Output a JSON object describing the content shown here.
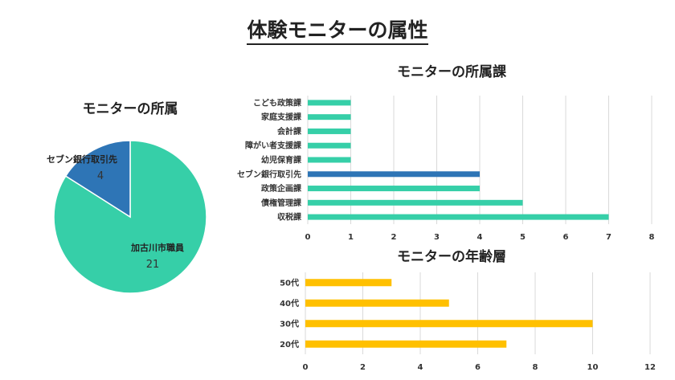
{
  "page": {
    "title": "体験モニターの属性"
  },
  "chart_data": [
    {
      "type": "pie",
      "title": "モニターの所属",
      "slices": [
        {
          "label": "加古川市職員",
          "value": 21,
          "color": "#36cfa8"
        },
        {
          "label": "セブン銀行取引先",
          "value": 4,
          "color": "#2e75b6"
        }
      ]
    },
    {
      "type": "bar",
      "orientation": "horizontal",
      "title": "モニターの所属課",
      "categories": [
        "こども政策課",
        "家庭支援課",
        "会計課",
        "障がい者支援課",
        "幼児保育課",
        "セブン銀行取引先",
        "政策企画課",
        "債権管理課",
        "収税課"
      ],
      "values": [
        1,
        1,
        1,
        1,
        1,
        4,
        4,
        5,
        7
      ],
      "colors": [
        "#36cfa8",
        "#36cfa8",
        "#36cfa8",
        "#36cfa8",
        "#36cfa8",
        "#2e75b6",
        "#36cfa8",
        "#36cfa8",
        "#36cfa8"
      ],
      "xlim": [
        0,
        8
      ],
      "xticks": [
        0,
        1,
        2,
        3,
        4,
        5,
        6,
        7,
        8
      ],
      "grid": true
    },
    {
      "type": "bar",
      "orientation": "horizontal",
      "title": "モニターの年齢層",
      "categories": [
        "50代",
        "40代",
        "30代",
        "20代"
      ],
      "values": [
        3,
        5,
        10,
        7
      ],
      "color": "#ffc000",
      "xlim": [
        0,
        12
      ],
      "xticks": [
        0,
        2,
        4,
        6,
        8,
        10,
        12
      ],
      "grid": true
    }
  ]
}
